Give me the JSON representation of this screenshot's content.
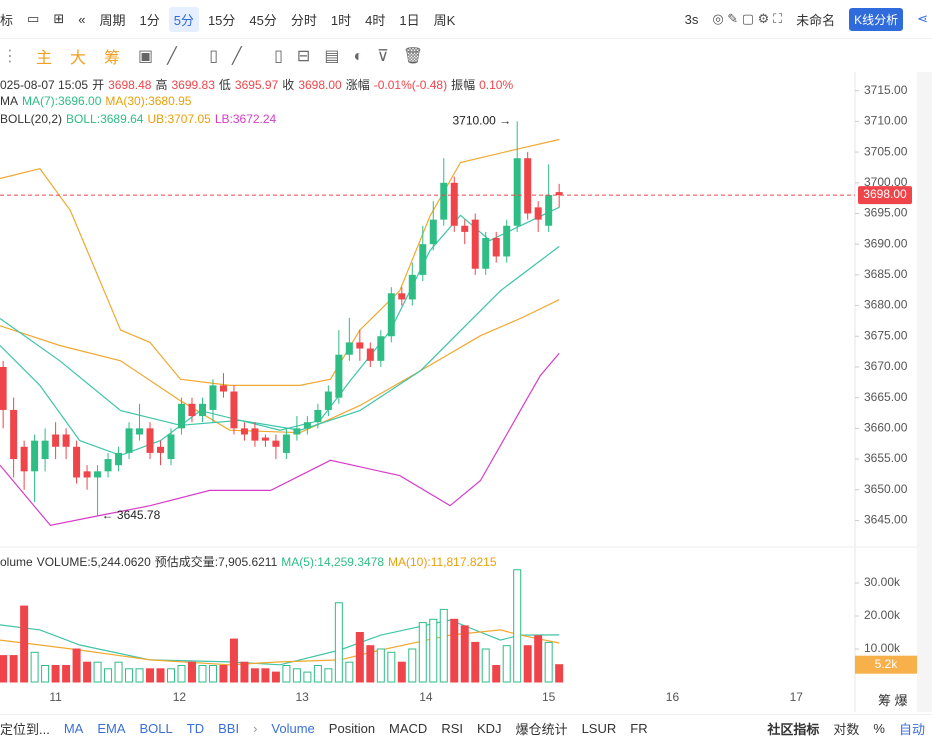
{
  "toolbar": {
    "indicators": "标",
    "period_menu": "周期",
    "periods": [
      "1分",
      "5分",
      "15分",
      "45分",
      "分时",
      "1时",
      "4时",
      "1日",
      "周K"
    ],
    "refresh": "3s",
    "layout_name": "未命名",
    "analysis_button": "K线分析"
  },
  "tools": {
    "main": "主",
    "big": "大",
    "chips": "筹"
  },
  "info": {
    "datetime": "025-08-07 15:05",
    "open_label": "开",
    "open": "3698.48",
    "high_label": "高",
    "high": "3699.83",
    "low_label": "低",
    "low": "3695.97",
    "close_label": "收",
    "close": "3698.00",
    "change_label": "涨幅",
    "change": "-0.01%(-0.48)",
    "amp_label": "振幅",
    "amp": "0.10%",
    "ma_label": "MA",
    "ma7": "MA(7):3696.00",
    "ma30": "MA(30):3680.95",
    "boll_label": "BOLL(20,2)",
    "boll": "BOLL:3689.64",
    "ub": "UB:3707.05",
    "lb": "LB:3672.24"
  },
  "volume_info": {
    "label": "olume",
    "volume": "VOLUME:5,244.0620",
    "estimate": "预估成交量:7,905.6211",
    "ma5": "MA(5):14,259.3478",
    "ma10": "MA(10):11,817.8215"
  },
  "chart_data": [
    {
      "type": "candlestick",
      "up_color": "#2ebd85",
      "down_color": "#ef454a",
      "open": [
        3670,
        3663,
        3657,
        3653,
        3655,
        3659,
        3659,
        3657,
        3653,
        3652,
        3653,
        3654,
        3656,
        3659,
        3660,
        3657,
        3655,
        3660,
        3664,
        3662,
        3663,
        3667,
        3666,
        3660,
        3660,
        3658.5,
        3658,
        3656,
        3659,
        3660,
        3661,
        3663,
        3665,
        3672,
        3674,
        3673,
        3671,
        3675,
        3682,
        3681,
        3685,
        3690,
        3694,
        3700,
        3693,
        3694,
        3686,
        3691,
        3688,
        3693,
        3704,
        3696,
        3693,
        3698.48
      ],
      "high": [
        3671,
        3665,
        3658,
        3659,
        3660,
        3661,
        3660,
        3658,
        3654,
        3654,
        3656,
        3657,
        3661,
        3664,
        3661,
        3658,
        3660,
        3665,
        3665,
        3665,
        3668,
        3669,
        3667,
        3661,
        3661,
        3659,
        3659,
        3660,
        3662,
        3662,
        3664,
        3667,
        3676,
        3678,
        3676,
        3674,
        3676,
        3683,
        3683,
        3687,
        3693,
        3697,
        3704,
        3701,
        3694,
        3695,
        3692,
        3692,
        3694,
        3710,
        3705,
        3697,
        3703,
        3699.83
      ],
      "low": [
        3660,
        3652,
        3650,
        3648,
        3653,
        3655,
        3655,
        3651,
        3650,
        3645.78,
        3652,
        3653,
        3655,
        3658,
        3655,
        3654,
        3654,
        3659,
        3661,
        3661,
        3661,
        3665,
        3659,
        3658,
        3657,
        3657,
        3655,
        3655,
        3658,
        3659,
        3660,
        3662,
        3664,
        3671,
        3671,
        3670,
        3670,
        3674,
        3680,
        3680,
        3684,
        3689,
        3693,
        3692,
        3690,
        3685,
        3685,
        3687,
        3687,
        3692,
        3694,
        3692,
        3692,
        3695.97
      ],
      "close": [
        3663,
        3655,
        3653,
        3658,
        3658,
        3657,
        3657,
        3652,
        3652,
        3653,
        3655,
        3656,
        3660,
        3660,
        3656,
        3656,
        3659,
        3664,
        3662,
        3664,
        3667,
        3666,
        3660,
        3659,
        3658,
        3658,
        3657,
        3659,
        3660,
        3661,
        3663,
        3666,
        3672,
        3674,
        3673,
        3671,
        3675,
        3682,
        3681,
        3685,
        3690,
        3694,
        3700,
        3693,
        3692,
        3686,
        3691,
        3688,
        3693,
        3704,
        3695,
        3694,
        3698,
        3698
      ],
      "lines": [
        {
          "color": "#f0a830",
          "x": [
            -0.3,
            3.5,
            6.4,
            11.2,
            14,
            16.9,
            21.6,
            28.3,
            31.2,
            34,
            37.8,
            40.7,
            43.6,
            49.3,
            53
          ],
          "values": [
            3700.7,
            3702.3,
            3695.5,
            3676,
            3674,
            3668,
            3667,
            3667,
            3668,
            3676,
            3682.4,
            3694.6,
            3703.3,
            3705.6,
            3707.05
          ]
        },
        {
          "color": "#f0a830",
          "x": [
            -0.3,
            5.4,
            11.2,
            16.9,
            21.6,
            28.3,
            34,
            39.8,
            45.5,
            49.3,
            53
          ],
          "values": [
            3676.7,
            3673.5,
            3671,
            3664.5,
            3659.7,
            3659.3,
            3663.7,
            3669.4,
            3675.1,
            3677.9,
            3680.95
          ]
        },
        {
          "color": "#3fc4a8",
          "x": [
            -0.3,
            5.4,
            11.2,
            16.9,
            22.6,
            28.3,
            34,
            39.8,
            43.6,
            47.4,
            53
          ],
          "values": [
            3677.9,
            3671,
            3662.9,
            3660.5,
            3661.3,
            3659.7,
            3662.9,
            3669.4,
            3675.9,
            3682.4,
            3689.64
          ]
        },
        {
          "color": "#3fc4a8",
          "x": [
            -0.3,
            3.5,
            7.3,
            11.2,
            15,
            18.8,
            22.6,
            26.4,
            30.2,
            33.1,
            36.9,
            40.7,
            43.6,
            46.4,
            49.3,
            53
          ],
          "values": [
            3673.5,
            3667,
            3658,
            3655.6,
            3658,
            3662.9,
            3661.3,
            3659.7,
            3661.3,
            3667.8,
            3675.9,
            3689,
            3694.7,
            3690.6,
            3693,
            3696
          ]
        },
        {
          "color": "#d63cc8",
          "x": [
            -0.3,
            4.5,
            9.2,
            14,
            19.7,
            25.5,
            31.2,
            37.8,
            42.6,
            45.5,
            49.3,
            51.2,
            53
          ],
          "values": [
            3654,
            3644.2,
            3645.8,
            3647.4,
            3649.9,
            3649.9,
            3654.8,
            3652.3,
            3647.4,
            3651.5,
            3662.9,
            3668.6,
            3672.24
          ]
        }
      ],
      "xlim": [
        -0.3,
        81.2
      ],
      "ylim": [
        3641,
        3720
      ],
      "yticks": [
        {
          "value": 3645,
          "label": "3645.00"
        },
        {
          "value": 3650,
          "label": "3650.00"
        },
        {
          "value": 3655,
          "label": "3655.00"
        },
        {
          "value": 3660,
          "label": "3660.00"
        },
        {
          "value": 3665,
          "label": "3665.00"
        },
        {
          "value": 3670,
          "label": "3670.00"
        },
        {
          "value": 3675,
          "label": "3675.00"
        },
        {
          "value": 3680,
          "label": "3680.00"
        },
        {
          "value": 3685,
          "label": "3685.00"
        },
        {
          "value": 3690,
          "label": "3690.00"
        },
        {
          "value": 3695,
          "label": "3695.00"
        },
        {
          "value": 3700,
          "label": "3700.00"
        },
        {
          "value": 3705,
          "label": "3705.00"
        },
        {
          "value": 3710,
          "label": "3710.00"
        },
        {
          "value": 3715,
          "label": "3715.00"
        }
      ],
      "last_price": {
        "value": 3698,
        "label": "3698.00"
      },
      "annotations": [
        {
          "x": 49,
          "value": 3710,
          "label": "3710.00 →",
          "side": "left"
        },
        {
          "x": 9,
          "value": 3645.78,
          "label": "← 3645.78",
          "side": "right"
        }
      ]
    },
    {
      "type": "bar",
      "values": [
        8000,
        8000,
        23000,
        9000,
        5000,
        5000,
        5000,
        10000,
        6000,
        6000,
        4000,
        6000,
        4000,
        4000,
        4000,
        4000,
        4000,
        5000,
        6000,
        5000,
        5000,
        5000,
        13000,
        6000,
        4000,
        4000,
        3000,
        5000,
        4000,
        3000,
        5000,
        4000,
        24000,
        6000,
        15000,
        11000,
        10000,
        9000,
        6000,
        10000,
        18000,
        19000,
        22000,
        19000,
        17000,
        12000,
        10000,
        5000,
        11000,
        34000,
        11000,
        14000,
        12000,
        5244.062
      ],
      "lines": [
        {
          "color": "#3fc4a8",
          "x": [
            -0.3,
            3.5,
            7.3,
            14,
            21.6,
            26.4,
            32.1,
            36,
            42.6,
            47.4,
            49.3,
            53
          ],
          "values": [
            17300,
            15800,
            11200,
            6700,
            6100,
            5200,
            9700,
            14200,
            18800,
            12700,
            14200,
            14259.3478
          ]
        },
        {
          "color": "#f0a830",
          "x": [
            -0.3,
            3.5,
            7.3,
            14,
            21.6,
            26.4,
            32.1,
            36,
            42.6,
            47.4,
            49.3,
            53
          ],
          "values": [
            12700,
            11200,
            9700,
            6700,
            5200,
            6100,
            6700,
            9700,
            14200,
            15800,
            14200,
            11817.8215
          ]
        }
      ],
      "xlim": [
        -0.3,
        81.2
      ],
      "ylim": [
        0,
        35450
      ],
      "yticks": [
        {
          "value": 10000,
          "label": "10.00k"
        },
        {
          "value": 20000,
          "label": "20.00k"
        },
        {
          "value": 30000,
          "label": "30.00k"
        }
      ],
      "xticks": [
        {
          "value": 5,
          "label": "11"
        },
        {
          "value": 16.8,
          "label": "12"
        },
        {
          "value": 28.5,
          "label": "13"
        },
        {
          "value": 40.3,
          "label": "14"
        },
        {
          "value": 52,
          "label": "15"
        },
        {
          "value": 63.8,
          "label": "16"
        },
        {
          "value": 75.6,
          "label": "17"
        }
      ],
      "last_value": {
        "value": 5244.062,
        "label": "5.2k"
      }
    }
  ],
  "bottom_bar": {
    "locate": "定位到...",
    "main_indicators": [
      "MA",
      "EMA",
      "BOLL",
      "TD",
      "BBI"
    ],
    "sub_indicators": [
      "Volume",
      "Position",
      "MACD",
      "RSI",
      "KDJ",
      "爆仓统计",
      "LSUR",
      "FR"
    ],
    "community": "社区指标",
    "log": "对数",
    "percent": "%",
    "auto": "自动"
  },
  "side": {
    "chips": "筹",
    "liq": "爆"
  }
}
